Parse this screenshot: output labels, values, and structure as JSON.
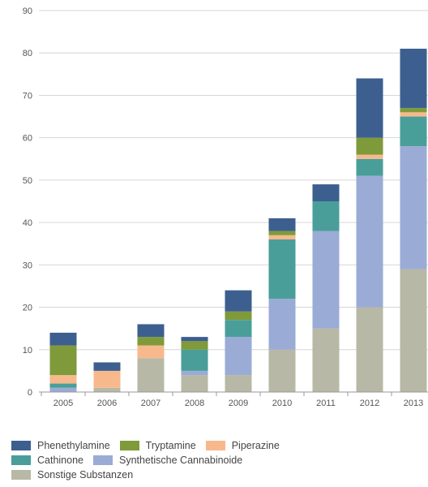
{
  "chart_data": {
    "type": "bar",
    "stacked": true,
    "categories": [
      "2005",
      "2006",
      "2007",
      "2008",
      "2009",
      "2010",
      "2011",
      "2012",
      "2013"
    ],
    "ylim": [
      0,
      90
    ],
    "yticks": [
      0,
      10,
      20,
      30,
      40,
      50,
      60,
      70,
      80,
      90
    ],
    "grid": true,
    "legend_position": "bottom",
    "series": [
      {
        "name": "Sonstige Substanzen",
        "color": "#b8b8a6",
        "values": [
          0,
          1,
          8,
          4,
          4,
          10,
          15,
          20,
          29
        ]
      },
      {
        "name": "Synthetische Cannabinoide",
        "color": "#9aabd6",
        "values": [
          1,
          0,
          0,
          1,
          9,
          12,
          23,
          31,
          29
        ]
      },
      {
        "name": "Cathinone",
        "color": "#4a9e9a",
        "values": [
          1,
          0,
          0,
          5,
          4,
          14,
          7,
          4,
          7
        ]
      },
      {
        "name": "Piperazine",
        "color": "#f7b98c",
        "values": [
          2,
          4,
          3,
          0,
          0,
          1,
          0,
          1,
          1
        ]
      },
      {
        "name": "Tryptamine",
        "color": "#7f9a3a",
        "values": [
          7,
          0,
          2,
          2,
          2,
          1,
          0,
          4,
          1
        ]
      },
      {
        "name": "Phenethylamine",
        "color": "#3d5f8f",
        "values": [
          3,
          2,
          3,
          1,
          5,
          3,
          4,
          14,
          14
        ]
      }
    ]
  },
  "legend": {
    "rows": [
      [
        "Phenethylamine",
        "Tryptamine",
        "Piperazine"
      ],
      [
        "Cathinone",
        "Synthetische Cannabinoide"
      ],
      [
        "Sonstige Substanzen"
      ]
    ]
  }
}
